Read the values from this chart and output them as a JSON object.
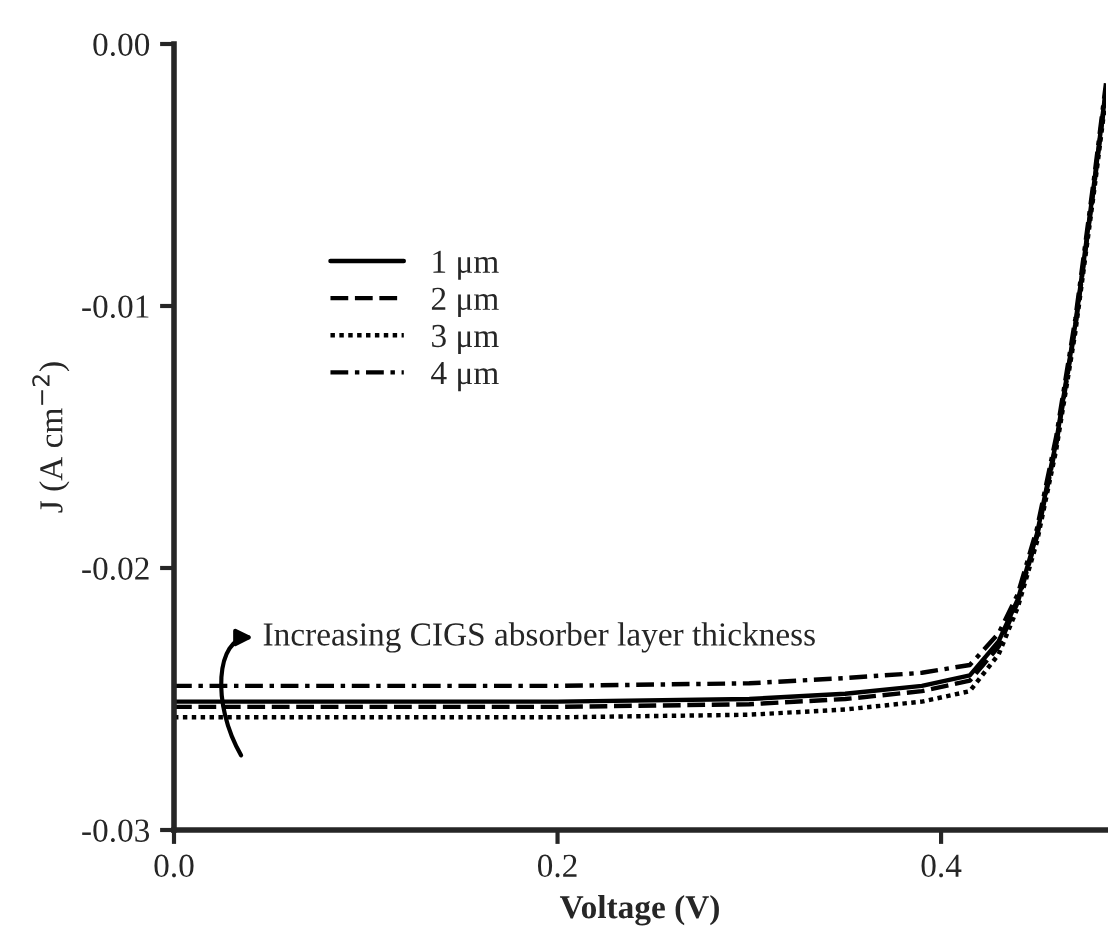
{
  "chart_data": {
    "type": "line",
    "xlabel": "Voltage (V)",
    "ylabel": "J (A cm$^{−2}$)",
    "x": [
      0,
      0.1,
      0.2,
      0.3,
      0.35,
      0.39,
      0.415,
      0.43,
      0.44,
      0.45,
      0.46,
      0.47,
      0.48,
      0.486
    ],
    "series": [
      {
        "name": "1 μm",
        "color": "#000000",
        "line_style": "solid",
        "values": [
          -0.0251,
          -0.0251,
          -0.0251,
          -0.025,
          -0.0248,
          -0.0245,
          -0.0241,
          -0.0228,
          -0.0212,
          -0.0187,
          -0.0152,
          -0.0107,
          -0.0052,
          -0.0017
        ]
      },
      {
        "name": "2 μm",
        "color": "#000000",
        "line_style": "dashed",
        "values": [
          -0.0253,
          -0.0253,
          -0.0253,
          -0.0252,
          -0.025,
          -0.0247,
          -0.0243,
          -0.023,
          -0.0213,
          -0.0188,
          -0.0153,
          -0.0108,
          -0.0053,
          -0.0018
        ]
      },
      {
        "name": "3 μm",
        "color": "#000000",
        "line_style": "dotted",
        "values": [
          -0.0257,
          -0.0257,
          -0.0257,
          -0.0256,
          -0.0254,
          -0.0251,
          -0.0247,
          -0.0233,
          -0.0215,
          -0.019,
          -0.0155,
          -0.011,
          -0.0055,
          -0.002
        ]
      },
      {
        "name": "4 μm",
        "color": "#000000",
        "line_style": "dashdot",
        "values": [
          -0.0245,
          -0.0245,
          -0.0245,
          -0.0244,
          -0.0242,
          -0.024,
          -0.0237,
          -0.0225,
          -0.021,
          -0.0185,
          -0.015,
          -0.0105,
          -0.005,
          -0.0015
        ]
      }
    ],
    "xlim": [
      0,
      0.486
    ],
    "ylim": [
      -0.03,
      0
    ],
    "xticks": [
      {
        "value": 0,
        "label": "0.0"
      },
      0.2,
      0.4
    ],
    "yticks": [
      {
        "value": -0.03,
        "label": "-0.03"
      },
      {
        "value": -0.02,
        "label": "-0.02"
      },
      {
        "value": -0.01,
        "label": "-0.01"
      },
      {
        "value": 0,
        "label": "0.00"
      }
    ],
    "annotations": [
      "Increasing CIGS absorber layer thickness"
    ],
    "grid": false,
    "legend": "top left",
    "marker": "none"
  }
}
